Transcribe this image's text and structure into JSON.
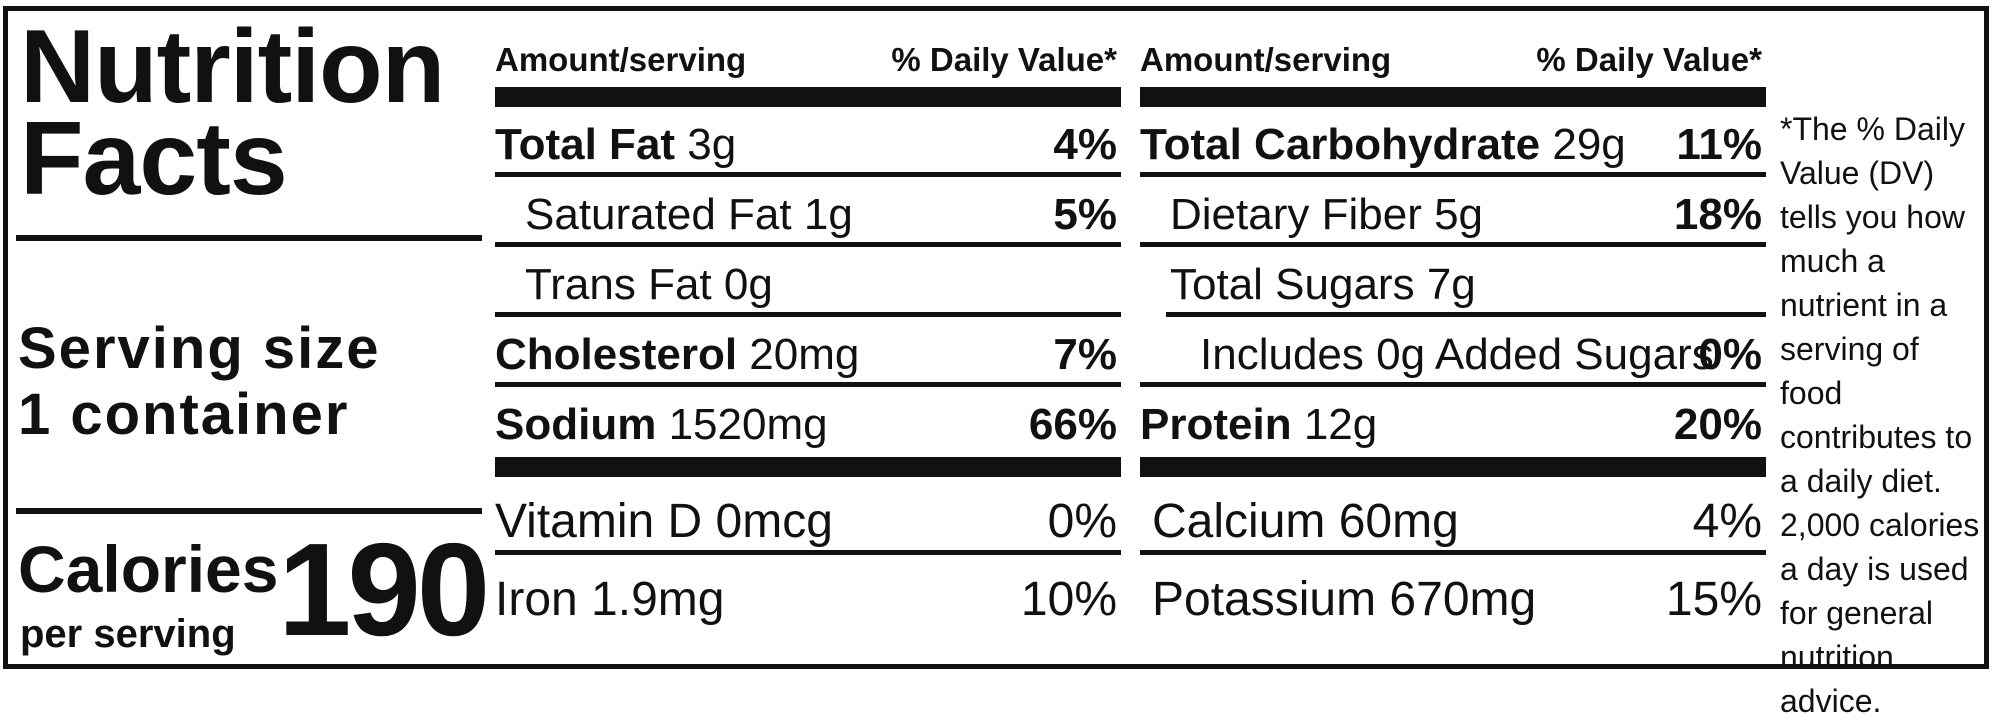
{
  "title": {
    "line1": "Nutrition",
    "line2": "Facts"
  },
  "serving": {
    "line1": "Serving size",
    "line2": "1 container"
  },
  "calories": {
    "label": "Calories",
    "sub": "per serving",
    "value": "190"
  },
  "headers": {
    "amount": "Amount/serving",
    "dv": "% Daily Value*"
  },
  "left_rows": [
    {
      "name": "Total Fat",
      "amount": "3g",
      "dv": "4%"
    },
    {
      "name": "Saturated Fat",
      "amount": "1g",
      "dv": "5%"
    },
    {
      "name": "Trans Fat",
      "amount": "0g",
      "dv": ""
    },
    {
      "name": "Cholesterol",
      "amount": "20mg",
      "dv": "7%"
    },
    {
      "name": "Sodium",
      "amount": "1520mg",
      "dv": "66%"
    }
  ],
  "right_rows": [
    {
      "name": "Total Carbohydrate",
      "amount": "29g",
      "dv": "11%"
    },
    {
      "name": "Dietary Fiber",
      "amount": "5g",
      "dv": "18%"
    },
    {
      "name": "Total Sugars",
      "amount": "7g",
      "dv": ""
    },
    {
      "name": "Includes 0g Added Sugars",
      "amount": "",
      "dv": "0%"
    },
    {
      "name": "Protein",
      "amount": "12g",
      "dv": "20%"
    }
  ],
  "vitamins_left": [
    {
      "name": "Vitamin D 0mcg",
      "dv": "0%"
    },
    {
      "name": "Iron 1.9mg",
      "dv": "10%"
    }
  ],
  "vitamins_right": [
    {
      "name": "Calcium 60mg",
      "dv": "4%"
    },
    {
      "name": "Potassium 670mg",
      "dv": "15%"
    }
  ],
  "footnote": "*The % Daily Value (DV) tells you how much a nutrient in a serving of food contributes to a daily diet. 2,000 calories a day is used for general nutrition advice."
}
